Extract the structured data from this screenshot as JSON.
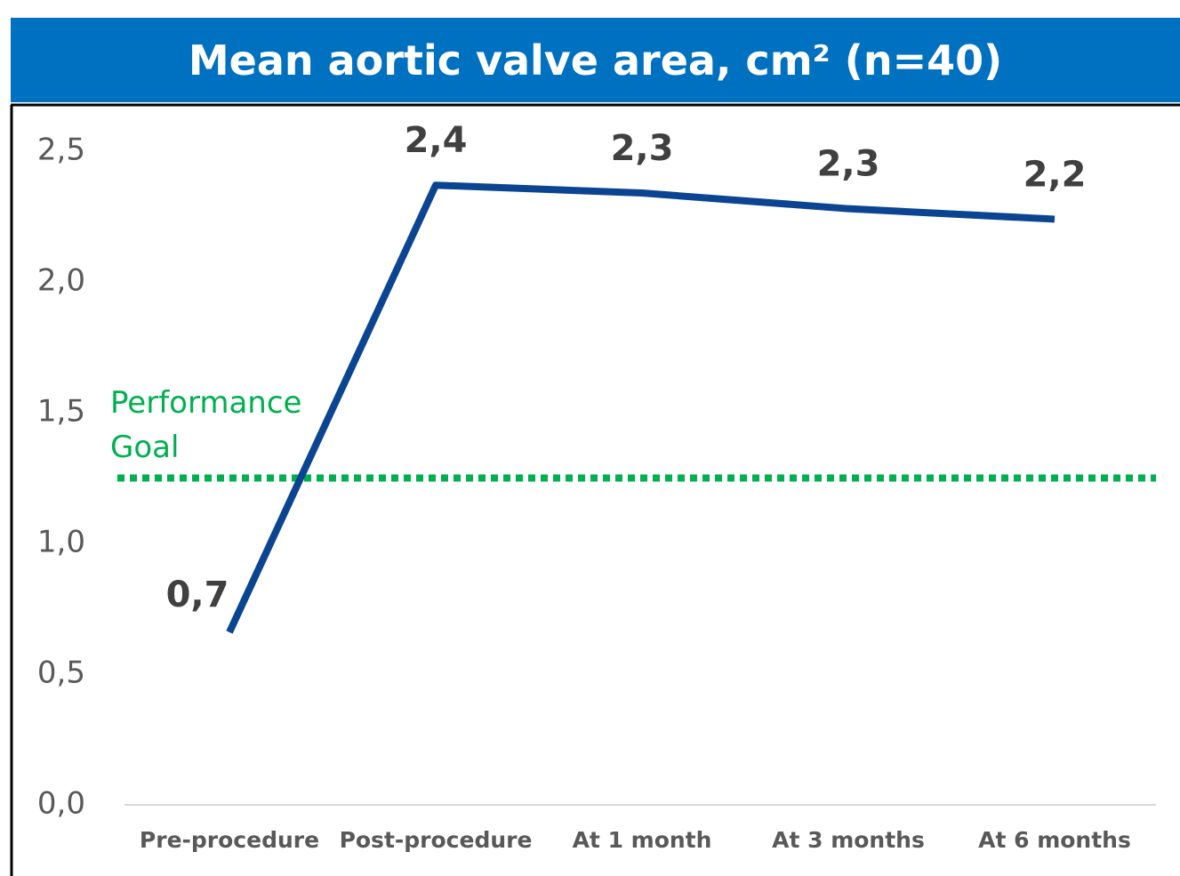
{
  "chart_data": {
    "type": "line",
    "title": "Mean aortic valve area, cm² (n=40)",
    "categories": [
      "Pre-procedure",
      "Post-procedure",
      "At 1 month",
      "At 3 months",
      "At 6 months"
    ],
    "series": [
      {
        "name": "Mean aortic valve area",
        "color": "#0b4592",
        "values": [
          0.66,
          2.37,
          2.34,
          2.28,
          2.24
        ],
        "value_labels": [
          "0,7",
          "2,4",
          "2,3",
          "2,3",
          "2,2"
        ]
      }
    ],
    "ylim": [
      0,
      2.5
    ],
    "yticks": [
      {
        "value": 0,
        "label": "0,0"
      },
      {
        "value": 0.5,
        "label": "0,5"
      },
      {
        "value": 1,
        "label": "1,0"
      },
      {
        "value": 1.5,
        "label": "1,5"
      },
      {
        "value": 2,
        "label": "2,0"
      },
      {
        "value": 2.5,
        "label": "2,5"
      }
    ],
    "reference_line": {
      "value": 1.25,
      "label": "Performance Goal",
      "color": "#00b050"
    }
  }
}
